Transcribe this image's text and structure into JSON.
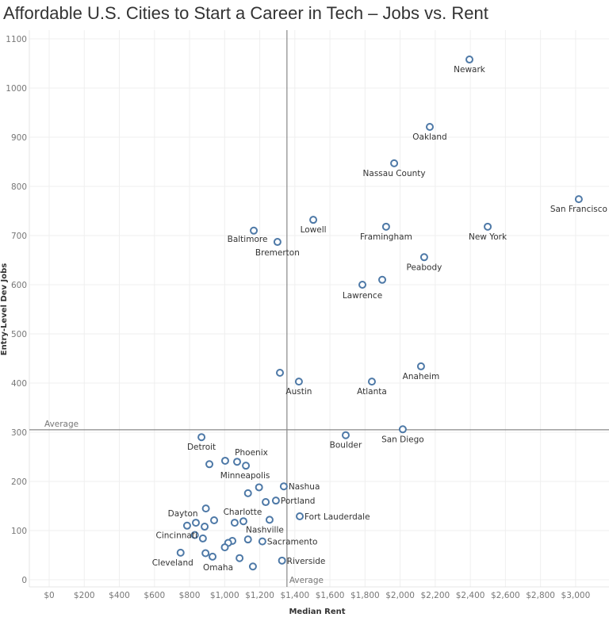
{
  "chart_data": {
    "type": "scatter",
    "title": "Affordable U.S. Cities to Start a Career in Tech – Jobs vs. Rent",
    "xlabel": "Median Rent",
    "ylabel": "Entry-Level Dev Jobs",
    "xlim": [
      0,
      3200
    ],
    "ylim": [
      0,
      1100
    ],
    "x_ticks": [
      "$0",
      "$200",
      "$400",
      "$600",
      "$800",
      "$1,000",
      "$1,200",
      "$1,400",
      "$1,600",
      "$1,800",
      "$2,000",
      "$2,200",
      "$2,400",
      "$2,600",
      "$2,800",
      "$3,000"
    ],
    "y_ticks": [
      "0",
      "100",
      "200",
      "300",
      "400",
      "500",
      "600",
      "700",
      "800",
      "900",
      "1000",
      "1100"
    ],
    "grid": true,
    "marker_color": "#4e79a7",
    "reference_lines": {
      "x_average": {
        "label": "Average",
        "value": 1355
      },
      "y_average": {
        "label": "Average",
        "value": 305
      }
    },
    "points": [
      {
        "label": "Newark",
        "x": 2395,
        "y": 1058
      },
      {
        "label": "Oakland",
        "x": 2169,
        "y": 921
      },
      {
        "label": "Nassau County",
        "x": 1966,
        "y": 847
      },
      {
        "label": "San Francisco",
        "x": 3018,
        "y": 774
      },
      {
        "label": "Lowell",
        "x": 1505,
        "y": 732
      },
      {
        "label": "Framingham",
        "x": 1920,
        "y": 718
      },
      {
        "label": "New York",
        "x": 2499,
        "y": 718
      },
      {
        "label": "Baltimore",
        "x": 1166,
        "y": 710
      },
      {
        "label": "Bremerton",
        "x": 1301,
        "y": 687
      },
      {
        "label": "Peabody",
        "x": 2137,
        "y": 656
      },
      {
        "label": "Lawrence",
        "x": 1785,
        "y": 600
      },
      {
        "label": "",
        "x": 1898,
        "y": 610
      },
      {
        "label": "Anaheim",
        "x": 2119,
        "y": 434
      },
      {
        "label": "",
        "x": 1315,
        "y": 421
      },
      {
        "label": "Austin",
        "x": 1423,
        "y": 403
      },
      {
        "label": "Atlanta",
        "x": 1839,
        "y": 403
      },
      {
        "label": "Boulder",
        "x": 1690,
        "y": 294
      },
      {
        "label": "San Diego",
        "x": 2015,
        "y": 306
      },
      {
        "label": "Detroit",
        "x": 868,
        "y": 290
      },
      {
        "label": "",
        "x": 913,
        "y": 235
      },
      {
        "label": "",
        "x": 1003,
        "y": 242
      },
      {
        "label": "Phoenix",
        "x": 1071,
        "y": 240
      },
      {
        "label": "Minneapolis",
        "x": 1121,
        "y": 232
      },
      {
        "label": "",
        "x": 1196,
        "y": 188
      },
      {
        "label": "Nashua",
        "x": 1337,
        "y": 190
      },
      {
        "label": "",
        "x": 1133,
        "y": 176
      },
      {
        "label": "",
        "x": 1234,
        "y": 158
      },
      {
        "label": "Portland",
        "x": 1292,
        "y": 161
      },
      {
        "label": "Dayton",
        "x": 893,
        "y": 145
      },
      {
        "label": "Fort Lauderdale",
        "x": 1428,
        "y": 129
      },
      {
        "label": "Nashville",
        "x": 1256,
        "y": 122
      },
      {
        "label": "",
        "x": 786,
        "y": 110
      },
      {
        "label": "",
        "x": 836,
        "y": 116
      },
      {
        "label": "",
        "x": 886,
        "y": 108
      },
      {
        "label": "",
        "x": 940,
        "y": 121
      },
      {
        "label": "",
        "x": 1057,
        "y": 116
      },
      {
        "label": "Charlotte",
        "x": 1107,
        "y": 119
      },
      {
        "label": "Cincinnati",
        "x": 830,
        "y": 91
      },
      {
        "label": "",
        "x": 876,
        "y": 84
      },
      {
        "label": "",
        "x": 1044,
        "y": 79
      },
      {
        "label": "",
        "x": 1020,
        "y": 75
      },
      {
        "label": "",
        "x": 1001,
        "y": 66
      },
      {
        "label": "",
        "x": 1133,
        "y": 82
      },
      {
        "label": "Sacramento",
        "x": 1215,
        "y": 78
      },
      {
        "label": "Cleveland",
        "x": 749,
        "y": 55
      },
      {
        "label": "",
        "x": 891,
        "y": 54
      },
      {
        "label": "Omaha",
        "x": 931,
        "y": 47
      },
      {
        "label": "",
        "x": 1085,
        "y": 44
      },
      {
        "label": "",
        "x": 1161,
        "y": 27
      },
      {
        "label": "Riverside",
        "x": 1327,
        "y": 39
      }
    ]
  }
}
